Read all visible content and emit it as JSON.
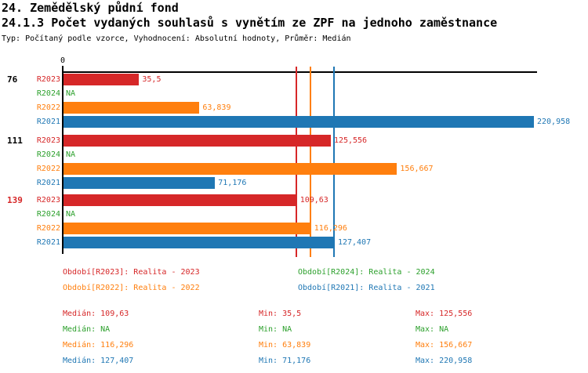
{
  "title": "24. Zemědělský půdní fond",
  "subtitle": "24.1.3 Počet vydaných souhlasů s vynětím ze ZPF na jednoho zaměstnance",
  "meta": "Typ: Počítaný podle vzorce, Vyhodnocení: Absolutní hodnoty, Průměr: Medián",
  "axis": {
    "zero_label": "0"
  },
  "colors": {
    "R2023": "#d62728",
    "R2024": "#2ca02c",
    "R2022": "#ff7f0e",
    "R2021": "#1f77b4",
    "axis": "#000000",
    "highlight": "#d62728",
    "default_label": "#000000"
  },
  "chart_data": {
    "type": "bar",
    "orientation": "horizontal",
    "title": "24.1.3 Počet vydaných souhlasů s vynětím ze ZPF na jednoho zaměstnance",
    "xlabel": "",
    "ylabel": "",
    "xlim": [
      0,
      221
    ],
    "x_tick_labels": [
      "0"
    ],
    "series_order": [
      "R2023",
      "R2024",
      "R2022",
      "R2021"
    ],
    "groups": [
      {
        "label": "76",
        "label_color": "#000000",
        "bars": [
          {
            "series": "R2023",
            "value": 35.5,
            "value_label": "35,5",
            "color": "#d62728"
          },
          {
            "series": "R2024",
            "value": null,
            "value_label": "NA",
            "color": "#2ca02c"
          },
          {
            "series": "R2022",
            "value": 63.839,
            "value_label": "63,839",
            "color": "#ff7f0e"
          },
          {
            "series": "R2021",
            "value": 220.958,
            "value_label": "220,958",
            "color": "#1f77b4"
          }
        ]
      },
      {
        "label": "111",
        "label_color": "#000000",
        "bars": [
          {
            "series": "R2023",
            "value": 125.556,
            "value_label": "125,556",
            "color": "#d62728"
          },
          {
            "series": "R2024",
            "value": null,
            "value_label": "NA",
            "color": "#2ca02c"
          },
          {
            "series": "R2022",
            "value": 156.667,
            "value_label": "156,667",
            "color": "#ff7f0e"
          },
          {
            "series": "R2021",
            "value": 71.176,
            "value_label": "71,176",
            "color": "#1f77b4"
          }
        ]
      },
      {
        "label": "139",
        "label_color": "#d62728",
        "bars": [
          {
            "series": "R2023",
            "value": 109.63,
            "value_label": "109,63",
            "color": "#d62728"
          },
          {
            "series": "R2024",
            "value": null,
            "value_label": "NA",
            "color": "#2ca02c"
          },
          {
            "series": "R2022",
            "value": 116.296,
            "value_label": "116,296",
            "color": "#ff7f0e"
          },
          {
            "series": "R2021",
            "value": 127.407,
            "value_label": "127,407",
            "color": "#1f77b4"
          }
        ]
      }
    ],
    "median_lines": [
      {
        "series": "R2023",
        "value": 109.63,
        "color": "#d62728"
      },
      {
        "series": "R2022",
        "value": 116.296,
        "color": "#ff7f0e"
      },
      {
        "series": "R2021",
        "value": 127.407,
        "color": "#1f77b4"
      }
    ]
  },
  "legend": {
    "items": [
      {
        "series": "R2023",
        "color": "#d62728",
        "text": "Období[R2023]: Realita - 2023"
      },
      {
        "series": "R2024",
        "color": "#2ca02c",
        "text": "Období[R2024]: Realita - 2024"
      },
      {
        "series": "R2022",
        "color": "#ff7f0e",
        "text": "Období[R2022]: Realita - 2022"
      },
      {
        "series": "R2021",
        "color": "#1f77b4",
        "text": "Období[R2021]: Realita - 2021"
      }
    ]
  },
  "stats": {
    "rows": [
      {
        "series": "R2023",
        "color": "#d62728",
        "median": "Medián: 109,63",
        "min": "Min: 35,5",
        "max": "Max: 125,556"
      },
      {
        "series": "R2024",
        "color": "#2ca02c",
        "median": "Medián: NA",
        "min": "Min: NA",
        "max": "Max: NA"
      },
      {
        "series": "R2022",
        "color": "#ff7f0e",
        "median": "Medián: 116,296",
        "min": "Min: 63,839",
        "max": "Max: 156,667"
      },
      {
        "series": "R2021",
        "color": "#1f77b4",
        "median": "Medián: 127,407",
        "min": "Min: 71,176",
        "max": "Max: 220,958"
      }
    ]
  }
}
